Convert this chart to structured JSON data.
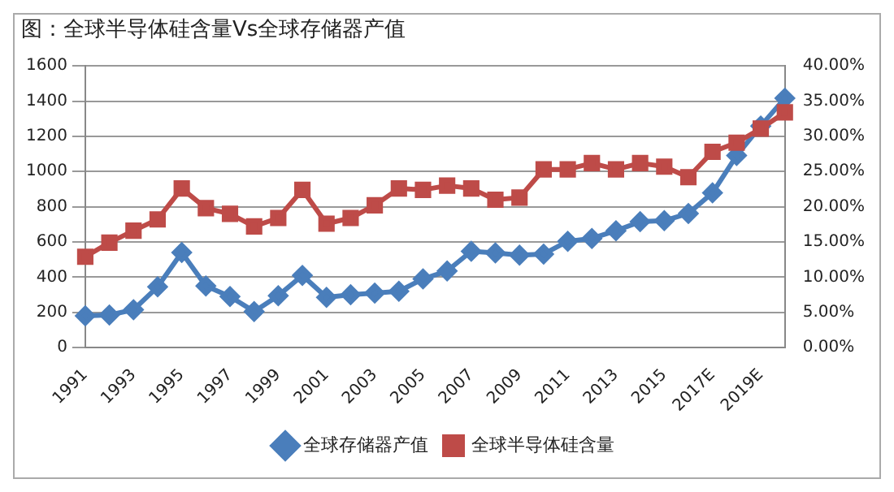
{
  "chart_data": {
    "type": "line",
    "title": "图：全球半导体硅含量Vs全球存储器产值",
    "categories": [
      "1991",
      null,
      "1993",
      null,
      "1995",
      null,
      "1997",
      null,
      "1999",
      null,
      "2001",
      null,
      "2003",
      null,
      "2005",
      null,
      "2007",
      null,
      "2009",
      null,
      "2011",
      null,
      "2013",
      null,
      "2015",
      null,
      "2017E",
      null,
      "2019E",
      null
    ],
    "series": [
      {
        "name": "全球存储器产值",
        "color": "#4a7ebb",
        "marker": "diamond",
        "values": [
          180,
          185,
          215,
          345,
          540,
          350,
          290,
          205,
          295,
          410,
          285,
          300,
          310,
          320,
          390,
          435,
          547,
          538,
          525,
          531,
          604,
          620,
          664,
          715,
          721,
          762,
          879,
          1091,
          1259,
          1417
        ]
      },
      {
        "name": "全球半导体硅含量",
        "color": "#be4b48",
        "marker": "square",
        "axis": "y2",
        "values": [
          12.9,
          14.9,
          16.6,
          18.2,
          22.6,
          19.8,
          19,
          17.2,
          18.4,
          22.4,
          17.6,
          18.4,
          20.2,
          22.6,
          22.4,
          23,
          22.6,
          21,
          21.3,
          25.3,
          25.3,
          26.2,
          25.3,
          26.2,
          25.7,
          24.2,
          27.8,
          29.1,
          31.1,
          33.4
        ]
      }
    ],
    "ylim": [
      0,
      1600
    ],
    "yticks": [
      0,
      200,
      400,
      600,
      800,
      1000,
      1200,
      1400,
      1600
    ],
    "y2lim": [
      0,
      40
    ],
    "y2ticks": [
      {
        "value": 0,
        "label": "0.00%"
      },
      {
        "value": 5,
        "label": "5.00%"
      },
      {
        "value": 10,
        "label": "10.00%"
      },
      {
        "value": 15,
        "label": "15.00%"
      },
      {
        "value": 20,
        "label": "20.00%"
      },
      {
        "value": 25,
        "label": "25.00%"
      },
      {
        "value": 30,
        "label": "30.00%"
      },
      {
        "value": 35,
        "label": "35.00%"
      },
      {
        "value": 40,
        "label": "40.00%"
      }
    ],
    "grid": "y",
    "legend": "bottom"
  }
}
